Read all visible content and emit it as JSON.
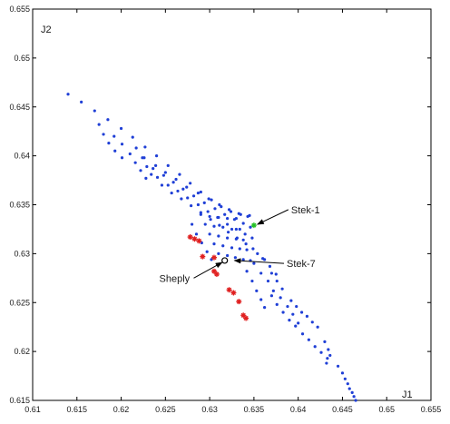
{
  "chart_data": {
    "type": "scatter",
    "xlabel": "J1",
    "ylabel": "J2",
    "xlim": [
      0.61,
      0.655
    ],
    "ylim": [
      0.615,
      0.655
    ],
    "xticks": [
      "0.61",
      "0.615",
      "0.62",
      "0.625",
      "0.63",
      "0.635",
      "0.64",
      "0.645",
      "0.65",
      "0.655"
    ],
    "yticks": [
      "0.615",
      "0.62",
      "0.625",
      "0.63",
      "0.635",
      "0.64",
      "0.645",
      "0.65",
      "0.655"
    ],
    "grid": false,
    "colors": {
      "blue": "#1f3fd6",
      "red": "#e02020",
      "green": "#22c022",
      "black": "#000000"
    },
    "series": [
      {
        "color": "blue",
        "marker": "dot",
        "points": [
          [
            0.614,
            0.6463
          ],
          [
            0.6155,
            0.6455
          ],
          [
            0.617,
            0.6446
          ],
          [
            0.6185,
            0.6437
          ],
          [
            0.62,
            0.6428
          ],
          [
            0.6213,
            0.6419
          ],
          [
            0.6227,
            0.6409
          ],
          [
            0.624,
            0.64
          ],
          [
            0.6253,
            0.639
          ],
          [
            0.6266,
            0.6381
          ],
          [
            0.6278,
            0.6372
          ],
          [
            0.629,
            0.6363
          ],
          [
            0.6302,
            0.6355
          ],
          [
            0.6313,
            0.6348
          ],
          [
            0.6324,
            0.6343
          ],
          [
            0.6335,
            0.634
          ],
          [
            0.6345,
            0.6339
          ],
          [
            0.6175,
            0.6432
          ],
          [
            0.618,
            0.6422
          ],
          [
            0.6186,
            0.6413
          ],
          [
            0.6193,
            0.6405
          ],
          [
            0.6201,
            0.6398
          ],
          [
            0.6192,
            0.642
          ],
          [
            0.6201,
            0.6412
          ],
          [
            0.621,
            0.6402
          ],
          [
            0.6216,
            0.6393
          ],
          [
            0.6222,
            0.6385
          ],
          [
            0.6228,
            0.6377
          ],
          [
            0.6217,
            0.6408
          ],
          [
            0.6224,
            0.6398
          ],
          [
            0.6229,
            0.6389
          ],
          [
            0.6234,
            0.6381
          ],
          [
            0.6226,
            0.6398
          ],
          [
            0.6236,
            0.6387
          ],
          [
            0.6241,
            0.6378
          ],
          [
            0.6246,
            0.637
          ],
          [
            0.6239,
            0.639
          ],
          [
            0.6248,
            0.638
          ],
          [
            0.6253,
            0.637
          ],
          [
            0.6257,
            0.6362
          ],
          [
            0.625,
            0.6383
          ],
          [
            0.6259,
            0.6373
          ],
          [
            0.6264,
            0.6364
          ],
          [
            0.6268,
            0.6356
          ],
          [
            0.6262,
            0.6376
          ],
          [
            0.627,
            0.6366
          ],
          [
            0.6275,
            0.6357
          ],
          [
            0.6279,
            0.6349
          ],
          [
            0.6274,
            0.6368
          ],
          [
            0.6282,
            0.6359
          ],
          [
            0.6287,
            0.635
          ],
          [
            0.629,
            0.6342
          ],
          [
            0.6287,
            0.6362
          ],
          [
            0.6294,
            0.6352
          ],
          [
            0.6298,
            0.6343
          ],
          [
            0.6301,
            0.6335
          ],
          [
            0.6299,
            0.6356
          ],
          [
            0.6306,
            0.6346
          ],
          [
            0.6309,
            0.6337
          ],
          [
            0.6311,
            0.6329
          ],
          [
            0.6311,
            0.635
          ],
          [
            0.6317,
            0.634
          ],
          [
            0.632,
            0.633
          ],
          [
            0.6321,
            0.6322
          ],
          [
            0.6322,
            0.6345
          ],
          [
            0.6328,
            0.6335
          ],
          [
            0.633,
            0.6325
          ],
          [
            0.6331,
            0.6316
          ],
          [
            0.6333,
            0.6341
          ],
          [
            0.6338,
            0.6331
          ],
          [
            0.634,
            0.632
          ],
          [
            0.6341,
            0.631
          ],
          [
            0.6343,
            0.6338
          ],
          [
            0.6346,
            0.6327
          ],
          [
            0.6348,
            0.6316
          ],
          [
            0.6349,
            0.6305
          ],
          [
            0.629,
            0.634
          ],
          [
            0.6295,
            0.633
          ],
          [
            0.63,
            0.632
          ],
          [
            0.6305,
            0.631
          ],
          [
            0.631,
            0.63
          ],
          [
            0.63,
            0.6338
          ],
          [
            0.6305,
            0.6328
          ],
          [
            0.631,
            0.6318
          ],
          [
            0.6315,
            0.6308
          ],
          [
            0.632,
            0.6298
          ],
          [
            0.631,
            0.6337
          ],
          [
            0.6315,
            0.6327
          ],
          [
            0.632,
            0.6316
          ],
          [
            0.6325,
            0.6306
          ],
          [
            0.6329,
            0.6296
          ],
          [
            0.632,
            0.6336
          ],
          [
            0.6325,
            0.6325
          ],
          [
            0.633,
            0.6315
          ],
          [
            0.6334,
            0.6305
          ],
          [
            0.6338,
            0.6294
          ],
          [
            0.633,
            0.6336
          ],
          [
            0.6334,
            0.6325
          ],
          [
            0.6338,
            0.6314
          ],
          [
            0.6342,
            0.6304
          ],
          [
            0.6346,
            0.6293
          ],
          [
            0.628,
            0.633
          ],
          [
            0.6285,
            0.632
          ],
          [
            0.6291,
            0.6311
          ],
          [
            0.6297,
            0.6302
          ],
          [
            0.6302,
            0.6294
          ],
          [
            0.635,
            0.629
          ],
          [
            0.6358,
            0.628
          ],
          [
            0.6366,
            0.6272
          ],
          [
            0.6372,
            0.6262
          ],
          [
            0.638,
            0.6255
          ],
          [
            0.6388,
            0.6246
          ],
          [
            0.6394,
            0.6238
          ],
          [
            0.64,
            0.6229
          ],
          [
            0.6342,
            0.6282
          ],
          [
            0.6348,
            0.6272
          ],
          [
            0.6353,
            0.6262
          ],
          [
            0.6358,
            0.6253
          ],
          [
            0.6362,
            0.6245
          ],
          [
            0.637,
            0.6257
          ],
          [
            0.6376,
            0.6248
          ],
          [
            0.6383,
            0.624
          ],
          [
            0.639,
            0.6232
          ],
          [
            0.6397,
            0.6226
          ],
          [
            0.6405,
            0.6218
          ],
          [
            0.6412,
            0.6212
          ],
          [
            0.6419,
            0.6205
          ],
          [
            0.6426,
            0.6199
          ],
          [
            0.6433,
            0.6193
          ],
          [
            0.641,
            0.6236
          ],
          [
            0.6416,
            0.623
          ],
          [
            0.6422,
            0.6225
          ],
          [
            0.6404,
            0.624
          ],
          [
            0.6398,
            0.6246
          ],
          [
            0.6392,
            0.6252
          ],
          [
            0.643,
            0.621
          ],
          [
            0.6434,
            0.6202
          ],
          [
            0.6436,
            0.6196
          ],
          [
            0.6432,
            0.6188
          ],
          [
            0.637,
            0.628
          ],
          [
            0.6376,
            0.6272
          ],
          [
            0.6382,
            0.6264
          ],
          [
            0.636,
            0.6295
          ],
          [
            0.6368,
            0.6287
          ],
          [
            0.6375,
            0.6279
          ],
          [
            0.6354,
            0.63
          ],
          [
            0.6362,
            0.6294
          ],
          [
            0.6445,
            0.6185
          ],
          [
            0.645,
            0.6178
          ],
          [
            0.6453,
            0.6172
          ],
          [
            0.6456,
            0.6167
          ],
          [
            0.6458,
            0.6162
          ],
          [
            0.6461,
            0.6158
          ],
          [
            0.6463,
            0.6154
          ],
          [
            0.6465,
            0.615
          ]
        ]
      },
      {
        "color": "red",
        "marker": "star",
        "points": [
          [
            0.6278,
            0.6317
          ],
          [
            0.6283,
            0.6315
          ],
          [
            0.6288,
            0.6313
          ],
          [
            0.6292,
            0.6297
          ],
          [
            0.6305,
            0.6282
          ],
          [
            0.6308,
            0.6279
          ],
          [
            0.6322,
            0.6263
          ],
          [
            0.6327,
            0.626
          ],
          [
            0.6333,
            0.6251
          ],
          [
            0.6338,
            0.6237
          ],
          [
            0.6341,
            0.6234
          ],
          [
            0.6305,
            0.6296
          ]
        ]
      },
      {
        "color": "green",
        "marker": "star",
        "points": [
          [
            0.635,
            0.6329
          ]
        ]
      },
      {
        "color": "black",
        "marker": "circle",
        "points": [
          [
            0.6317,
            0.6293
          ]
        ]
      }
    ],
    "annotations": [
      {
        "text": "Stek-1",
        "text_at": [
          0.6392,
          0.6345
        ],
        "arrow_to": [
          0.6354,
          0.633
        ]
      },
      {
        "text": "Stek-7",
        "text_at": [
          0.6387,
          0.629
        ],
        "arrow_to": [
          0.6328,
          0.6293
        ]
      },
      {
        "text": "Sheply",
        "text_at": [
          0.6243,
          0.6275
        ],
        "arrow_to": [
          0.6314,
          0.6291
        ]
      }
    ]
  }
}
